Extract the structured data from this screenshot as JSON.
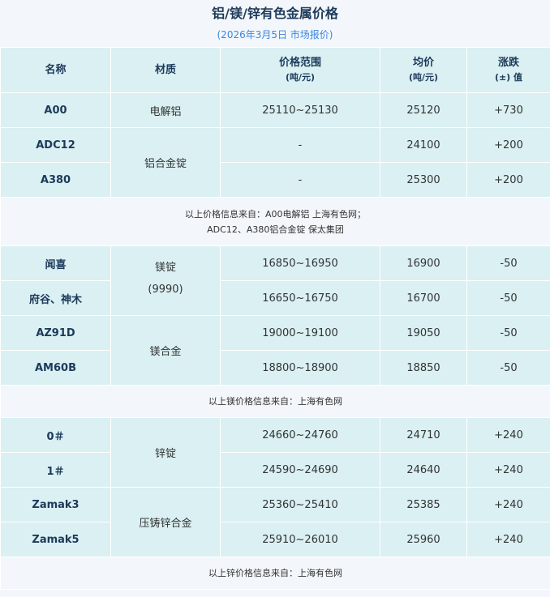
{
  "title": "铝/镁/锌有色金属价格",
  "subtitle": "(2026年3月5日 市场报价)",
  "headers": {
    "name": "名称",
    "material": "材质",
    "range": "价格范围",
    "range_unit": "(吨/元)",
    "avg": "均价",
    "avg_unit": "(吨/元)",
    "change": "涨跌",
    "change_unit": "(±) 值"
  },
  "groups": [
    {
      "rows": [
        {
          "name": "A00",
          "material": "电解铝",
          "range": "25110~25130",
          "avg": "25120",
          "change": "+730"
        },
        {
          "name": "ADC12",
          "material": "铝合金锭",
          "range": "-",
          "avg": "24100",
          "change": "+200"
        },
        {
          "name": "A380",
          "range": "-",
          "avg": "25300",
          "change": "+200"
        }
      ],
      "note": [
        "以上价格信息来自：A00电解铝 上海有色网；",
        "ADC12、A380铝合金锭 保太集团"
      ]
    },
    {
      "rows": [
        {
          "name": "闻喜",
          "material": "镁锭",
          "material2": "(9990)",
          "range": "16850~16950",
          "avg": "16900",
          "change": "-50"
        },
        {
          "name": "府谷、神木",
          "range": "16650~16750",
          "avg": "16700",
          "change": "-50"
        },
        {
          "name": "AZ91D",
          "material": "镁合金",
          "range": "19000~19100",
          "avg": "19050",
          "change": "-50"
        },
        {
          "name": "AM60B",
          "range": "18800~18900",
          "avg": "18850",
          "change": "-50"
        }
      ],
      "note": [
        "以上镁价格信息来自：上海有色网"
      ]
    },
    {
      "rows": [
        {
          "name": "0＃",
          "material": "锌锭",
          "range": "24660~24760",
          "avg": "24710",
          "change": "+240"
        },
        {
          "name": "1＃",
          "range": "24590~24690",
          "avg": "24640",
          "change": "+240"
        },
        {
          "name": "Zamak3",
          "material": "压铸锌合金",
          "range": "25360~25410",
          "avg": "25385",
          "change": "+240"
        },
        {
          "name": "Zamak5",
          "range": "25910~26010",
          "avg": "25960",
          "change": "+240"
        }
      ],
      "note": [
        "以上锌价格信息来自：上海有色网"
      ]
    }
  ]
}
